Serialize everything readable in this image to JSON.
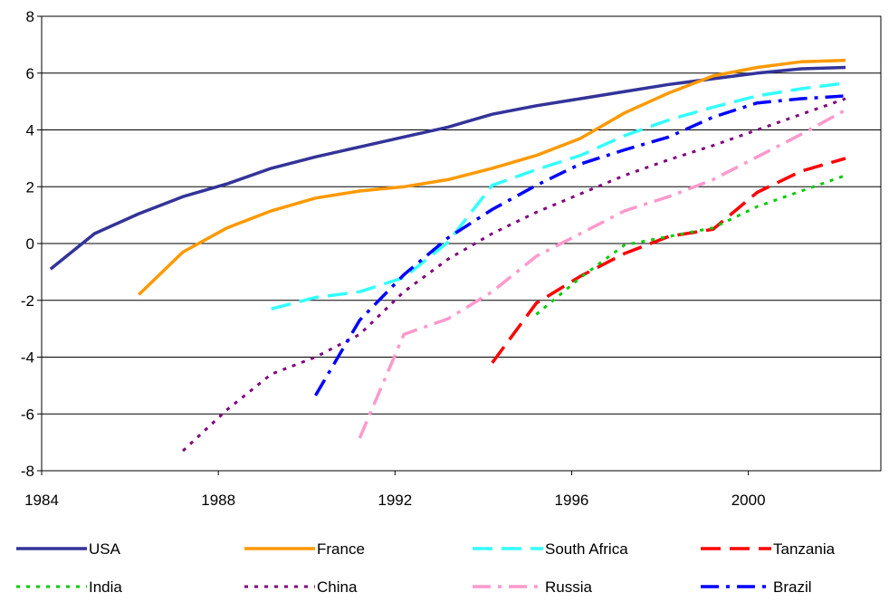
{
  "chart_data": {
    "type": "line",
    "title": "",
    "xlabel": "",
    "ylabel": "",
    "xlim": [
      1984,
      2003
    ],
    "ylim": [
      -8,
      8
    ],
    "xticks": [
      1984,
      1988,
      1992,
      1996,
      2000
    ],
    "xtick_labels": [
      "1984",
      "1988",
      "1992",
      "1996",
      "2000"
    ],
    "yticks": [
      -8,
      -6,
      -4,
      -2,
      0,
      2,
      4,
      6,
      8
    ],
    "ytick_labels": [
      "-8",
      "-6",
      "-4",
      "-2",
      "0",
      "2",
      "4",
      "6",
      "8"
    ],
    "grid": "horizontal",
    "legend_position": "bottom",
    "series": [
      {
        "name": "USA",
        "color": "#333399",
        "dash": "solid",
        "x": [
          1984.2,
          1985.2,
          1986.2,
          1987.2,
          1988.2,
          1989.2,
          1990.2,
          1991.2,
          1992.2,
          1993.2,
          1994.2,
          1995.2,
          1996.2,
          1997.2,
          1998.2,
          1999.2,
          2000.2,
          2001.2,
          2002.2
        ],
        "y": [
          -0.9,
          0.35,
          1.05,
          1.65,
          2.1,
          2.65,
          3.05,
          3.4,
          3.75,
          4.1,
          4.55,
          4.85,
          5.1,
          5.35,
          5.6,
          5.8,
          6.0,
          6.15,
          6.2
        ]
      },
      {
        "name": "France",
        "color": "#FF9900",
        "dash": "solid",
        "x": [
          1986.2,
          1987.2,
          1988.2,
          1989.2,
          1990.2,
          1991.2,
          1992.2,
          1993.2,
          1994.2,
          1995.2,
          1996.2,
          1997.2,
          1998.2,
          1999.2,
          2000.2,
          2001.2,
          2002.2
        ],
        "y": [
          -1.8,
          -0.3,
          0.55,
          1.15,
          1.6,
          1.85,
          2.0,
          2.25,
          2.65,
          3.1,
          3.7,
          4.6,
          5.3,
          5.9,
          6.2,
          6.4,
          6.45
        ]
      },
      {
        "name": "South Africa",
        "color": "#33FFFF",
        "dash": "long",
        "x": [
          1989.2,
          1990.2,
          1991.2,
          1992.2,
          1993.2,
          1994.2,
          1995.2,
          1996.2,
          1997.2,
          1998.2,
          1999.2,
          2000.2,
          2001.2,
          2002.2
        ],
        "y": [
          -2.3,
          -1.9,
          -1.7,
          -1.2,
          0.05,
          2.05,
          2.6,
          3.1,
          3.8,
          4.35,
          4.8,
          5.2,
          5.45,
          5.65
        ]
      },
      {
        "name": "Tanzania",
        "color": "#FF0000",
        "dash": "long",
        "x": [
          1994.2,
          1995.2,
          1996.2,
          1997.2,
          1998.2,
          1999.2,
          2000.2,
          2001.2,
          2002.2
        ],
        "y": [
          -4.2,
          -2.1,
          -1.15,
          -0.35,
          0.25,
          0.5,
          1.8,
          2.55,
          3.0
        ]
      },
      {
        "name": "India",
        "color": "#00CC00",
        "dash": "dot",
        "x": [
          1995.2,
          1996.2,
          1997.2,
          1998.2,
          1999.2,
          2000.2,
          2001.2,
          2002.2
        ],
        "y": [
          -2.5,
          -1.2,
          -0.05,
          0.25,
          0.55,
          1.3,
          1.85,
          2.4
        ]
      },
      {
        "name": "China",
        "color": "#800080",
        "dash": "dot",
        "x": [
          1987.2,
          1988.2,
          1989.2,
          1990.2,
          1991.2,
          1992.2,
          1993.2,
          1994.2,
          1995.2,
          1996.2,
          1997.2,
          1998.2,
          1999.2,
          2000.2,
          2001.2,
          2002.2
        ],
        "y": [
          -7.3,
          -5.85,
          -4.6,
          -4.0,
          -3.2,
          -1.7,
          -0.55,
          0.35,
          1.1,
          1.75,
          2.4,
          2.95,
          3.45,
          4.0,
          4.55,
          5.1
        ]
      },
      {
        "name": "Russia",
        "color": "#FF99CC",
        "dash": "dashdot",
        "x": [
          1991.2,
          1992.2,
          1993.2,
          1994.2,
          1995.2,
          1996.2,
          1997.2,
          1998.2,
          1999.2,
          2000.2,
          2001.2,
          2002.2
        ],
        "y": [
          -6.85,
          -3.2,
          -2.65,
          -1.7,
          -0.45,
          0.35,
          1.15,
          1.65,
          2.25,
          3.05,
          3.85,
          4.7
        ]
      },
      {
        "name": "Brazil",
        "color": "#0000FF",
        "dash": "dashdot",
        "x": [
          1990.2,
          1991.2,
          1992.2,
          1993.2,
          1994.2,
          1995.2,
          1996.2,
          1997.2,
          1998.2,
          1999.2,
          2000.2,
          2001.2,
          2002.2
        ],
        "y": [
          -5.35,
          -2.7,
          -1.1,
          0.2,
          1.2,
          2.05,
          2.8,
          3.3,
          3.75,
          4.45,
          4.95,
          5.1,
          5.2
        ]
      }
    ]
  }
}
